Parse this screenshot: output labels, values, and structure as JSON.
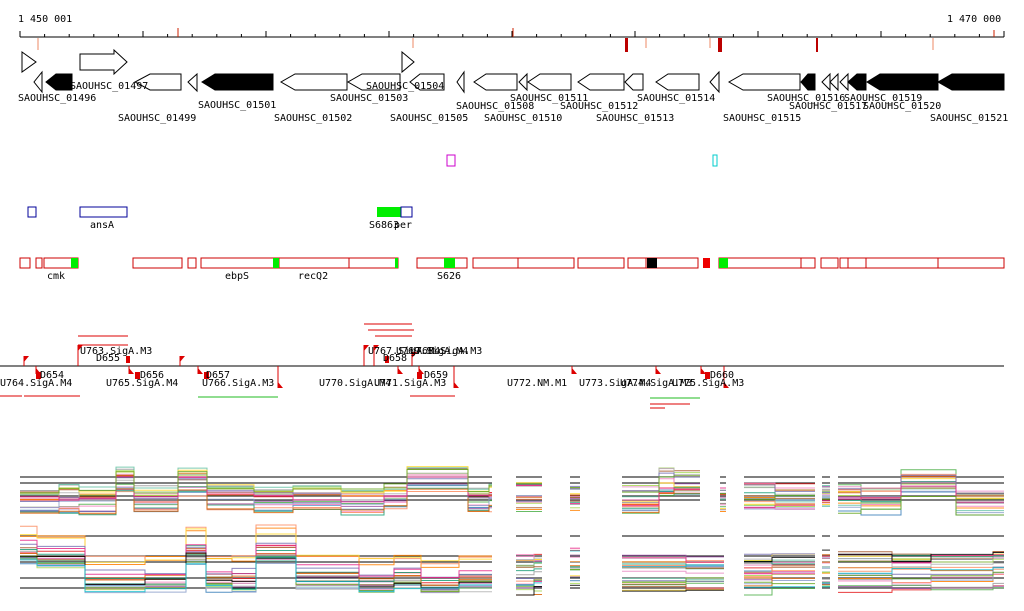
{
  "ruler": {
    "start": "1 450 001",
    "end": "1 470 000"
  },
  "genes_label_row1": [
    {
      "label": "SAOUHSC_01496"
    },
    {
      "label": "SAOUHSC_01497"
    },
    {
      "label": "SAOUHSC_01501"
    },
    {
      "label": "SAOUHSC_01503"
    },
    {
      "label": "SAOUHSC_01504"
    },
    {
      "label": "SAOUHSC_01508"
    },
    {
      "label": "SAOUHSC_01511"
    },
    {
      "label": "SAOUHSC_01512"
    },
    {
      "label": "SAOUHSC_01514"
    },
    {
      "label": "SAOUHSC_01516"
    },
    {
      "label": "SAOUHSC_01517"
    },
    {
      "label": "SAOUHSC_01519"
    },
    {
      "label": "SAOUHSC_01520"
    }
  ],
  "genes_label_row2": [
    {
      "label": "SAOUHSC_01499"
    },
    {
      "label": "SAOUHSC_01502"
    },
    {
      "label": "SAOUHSC_01505"
    },
    {
      "label": "SAOUHSC_01510"
    },
    {
      "label": "SAOUHSC_01513"
    },
    {
      "label": "SAOUHSC_01515"
    },
    {
      "label": "SAOUHSC_01521"
    }
  ],
  "features_blue": [
    {
      "label": "ansA"
    },
    {
      "label": "S6863"
    },
    {
      "label": "per"
    }
  ],
  "features_red": [
    {
      "label": "cmk"
    },
    {
      "label": "ebpS"
    },
    {
      "label": "recQ2"
    },
    {
      "label": "S626"
    }
  ],
  "promoters": [
    {
      "label": "U763.SigA.M3"
    },
    {
      "label": "D655"
    },
    {
      "label": "U764.SigA.M4"
    },
    {
      "label": "D654"
    },
    {
      "label": "U765.SigA.M4"
    },
    {
      "label": "D656"
    },
    {
      "label": "U766.SigA.M3"
    },
    {
      "label": "D657"
    },
    {
      "label": "U767.SigA.M4"
    },
    {
      "label": "D658"
    },
    {
      "label": "U768.SigA.M3"
    },
    {
      "label": "U769.SigA.M4"
    },
    {
      "label": "U770.SigA.M4"
    },
    {
      "label": "U771.SigA.M3"
    },
    {
      "label": "D659"
    },
    {
      "label": "U772.NM.M1"
    },
    {
      "label": "U773.SigA.M4"
    },
    {
      "label": "U774.SigA.M3"
    },
    {
      "label": "U775.SigA.M3"
    },
    {
      "label": "D660"
    }
  ],
  "colors": {
    "gene_outline": "#000000",
    "feature_red": "#cc0000",
    "feature_green": "#00ee00",
    "feature_blue": "#000099",
    "promoter": "#dd0000",
    "magenta": "#cc00cc",
    "cyan": "#00cccc"
  }
}
